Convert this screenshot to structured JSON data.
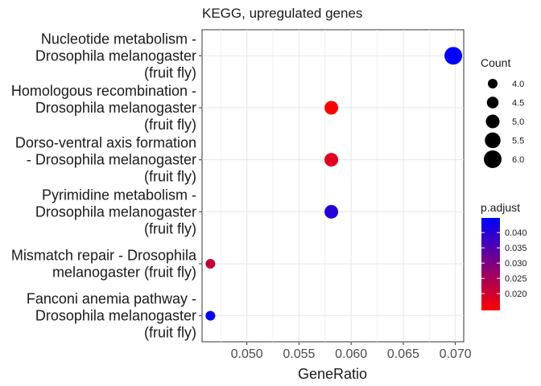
{
  "chart_data": {
    "type": "scatter",
    "title": "KEGG, upregulated genes",
    "xlabel": "GeneRatio",
    "ylabel": "",
    "xlim": [
      0.0457,
      0.0708
    ],
    "xticks": [
      "0.050",
      "0.055",
      "0.060",
      "0.065",
      "0.070"
    ],
    "xtick_values": [
      0.05,
      0.055,
      0.06,
      0.065,
      0.07
    ],
    "grid": true,
    "legend_position": "right",
    "categories": [
      [
        "Nucleotide metabolism -",
        "Drosophila melanogaster",
        "(fruit fly)"
      ],
      [
        "Homologous recombination -",
        "Drosophila melanogaster",
        "(fruit fly)"
      ],
      [
        "Dorso-ventral axis formation",
        "- Drosophila melanogaster",
        "(fruit fly)"
      ],
      [
        "Pyrimidine metabolism -",
        "Drosophila melanogaster",
        "(fruit fly)"
      ],
      [
        "Mismatch repair - Drosophila",
        "melanogaster (fruit fly)"
      ],
      [
        "Fanconi anemia pathway -",
        "Drosophila melanogaster",
        "(fruit fly)"
      ]
    ],
    "points": [
      {
        "gene_ratio": 0.0698,
        "count": 6,
        "p_adjust": 0.0448
      },
      {
        "gene_ratio": 0.0581,
        "count": 5,
        "p_adjust": 0.0145
      },
      {
        "gene_ratio": 0.0581,
        "count": 5,
        "p_adjust": 0.0178
      },
      {
        "gene_ratio": 0.0581,
        "count": 5,
        "p_adjust": 0.0405
      },
      {
        "gene_ratio": 0.0465,
        "count": 4,
        "p_adjust": 0.0215
      },
      {
        "gene_ratio": 0.0465,
        "count": 4,
        "p_adjust": 0.0448
      }
    ],
    "size_legend": {
      "title": "Count",
      "values": [
        4.0,
        4.5,
        5.0,
        5.5,
        6.0
      ],
      "labels": [
        "4.0",
        "4.5",
        "5.0",
        "5.5",
        "6.0"
      ]
    },
    "color_legend": {
      "title": "p.adjust",
      "range": [
        0.0145,
        0.0448
      ],
      "ticks": [
        0.02,
        0.025,
        0.03,
        0.035,
        0.04
      ],
      "labels": [
        "0.020",
        "0.025",
        "0.030",
        "0.035",
        "0.040"
      ],
      "low_color": "#ff0000",
      "high_color": "#0000ff"
    }
  }
}
